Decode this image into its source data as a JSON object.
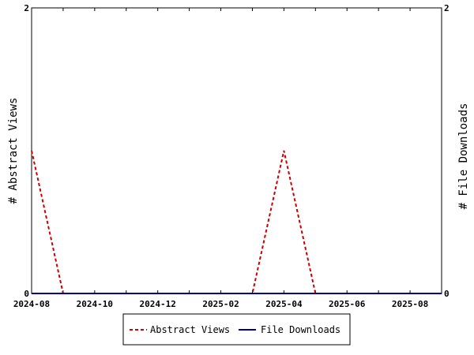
{
  "chart_data": {
    "type": "line",
    "x": [
      "2024-08",
      "2024-09",
      "2024-10",
      "2024-11",
      "2024-12",
      "2025-01",
      "2025-02",
      "2025-03",
      "2025-04",
      "2025-05",
      "2025-06",
      "2025-07",
      "2025-08",
      "2025-09"
    ],
    "series": [
      {
        "name": "Abstract Views",
        "axis": "left",
        "color": "#cc0000",
        "dash": "dashed",
        "values": [
          1,
          0,
          0,
          0,
          0,
          0,
          0,
          0,
          1,
          0,
          0,
          0,
          0,
          0
        ]
      },
      {
        "name": "File Downloads",
        "axis": "right",
        "color": "#000099",
        "dash": "solid",
        "values": [
          0,
          0,
          0,
          0,
          0,
          0,
          0,
          0,
          0,
          0,
          0,
          0,
          0,
          0
        ]
      }
    ],
    "x_tick_labels": [
      "2024-08",
      "2024-10",
      "2024-12",
      "2025-02",
      "2025-04",
      "2025-06",
      "2025-08"
    ],
    "ylabel_left": "# Abstract Views",
    "ylabel_right": "# File Downloads",
    "ylim_left": [
      0,
      2
    ],
    "ylim_right": [
      0,
      2
    ],
    "y_tick_labels_left": [
      "0",
      "2"
    ],
    "y_tick_labels_right": [
      "0",
      "2"
    ],
    "grid": false,
    "legend_position": "bottom"
  }
}
